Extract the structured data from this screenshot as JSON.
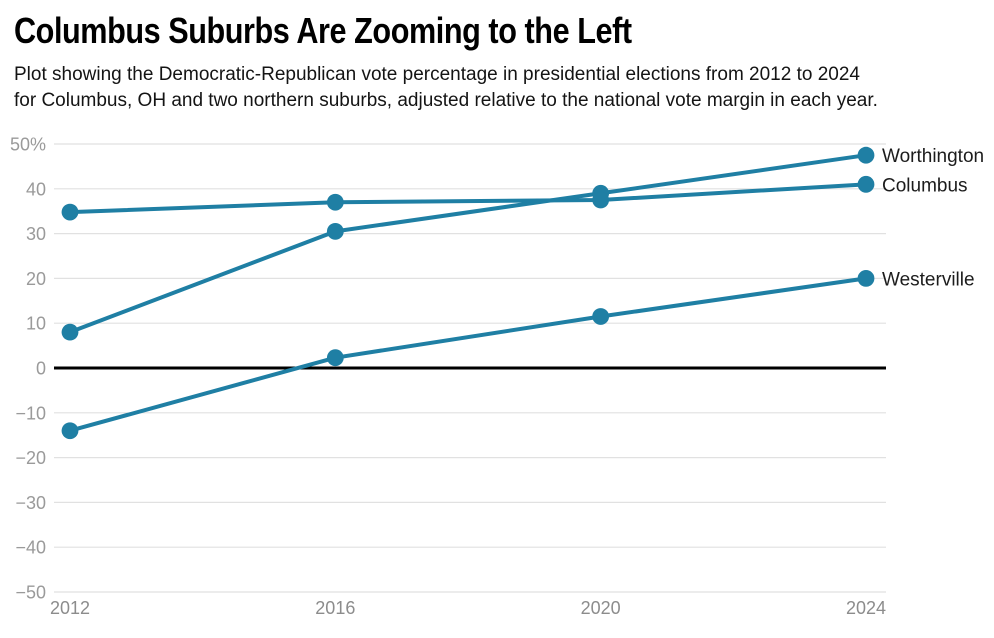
{
  "header": {
    "title": "Columbus Suburbs Are Zooming to the Left",
    "subtitle_line1": "Plot showing the Democratic-Republican vote percentage in presidential elections from 2012 to 2024",
    "subtitle_line2": "for Columbus, OH and two northern suburbs, adjusted relative to the national vote margin in each year."
  },
  "colors": {
    "line": "#1f7fa4",
    "grid": "#e1e1e1",
    "zero_line": "#000000",
    "y_tick_label": "#9a9a9a",
    "x_tick_label": "#8c8c8c",
    "series_label": "#1c1c1c",
    "background": "#ffffff"
  },
  "chart_data": {
    "type": "line",
    "x": [
      2012,
      2016,
      2020,
      2024
    ],
    "x_tick_labels": [
      "2012",
      "2016",
      "2020",
      "2024"
    ],
    "y_ticks": [
      50,
      40,
      30,
      20,
      10,
      0,
      -10,
      -20,
      -30,
      -40,
      -50
    ],
    "y_tick_labels": [
      "50%",
      "40",
      "30",
      "20",
      "10",
      "0",
      "−10",
      "−20",
      "−30",
      "−40",
      "−50"
    ],
    "ylim": [
      -50,
      50
    ],
    "grid": true,
    "zero_baseline": true,
    "legend_position": "end-of-line-labels",
    "series": [
      {
        "name": "Worthington",
        "values": [
          8,
          30.5,
          39,
          47.5
        ]
      },
      {
        "name": "Columbus",
        "values": [
          34.8,
          37,
          37.5,
          41
        ]
      },
      {
        "name": "Westerville",
        "values": [
          -14,
          2.3,
          11.5,
          20
        ]
      }
    ]
  }
}
